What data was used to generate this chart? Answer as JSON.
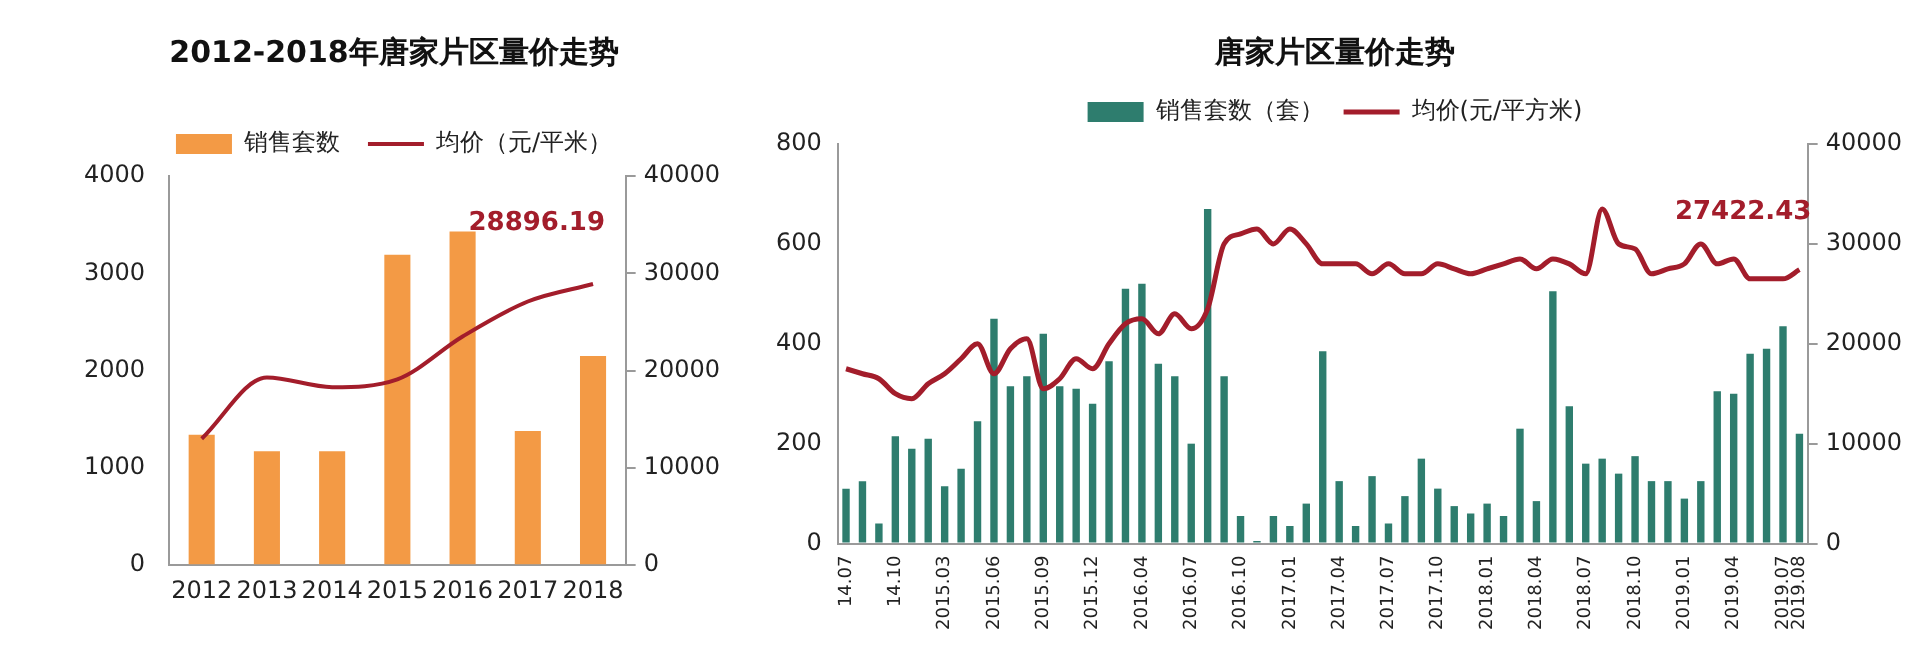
{
  "chart_data": [
    {
      "type": "bar",
      "title": "2012-2018年唐家片区量价走势",
      "legend": "top",
      "categories": [
        "2012",
        "2013",
        "2014",
        "2015",
        "2016",
        "2017",
        "2018"
      ],
      "series": [
        {
          "name": "销售套数",
          "color": "#f39a45",
          "values": [
            1340,
            1170,
            1170,
            3190,
            3430,
            1380,
            2150
          ]
        },
        {
          "name": "均价（元/平米）",
          "type": "line",
          "axis": "y2",
          "color": "#a31d2b",
          "values": [
            13000,
            19300,
            18300,
            19100,
            23500,
            27100,
            28896.19
          ],
          "value_labels": [
            null,
            null,
            null,
            null,
            null,
            null,
            "28896.19"
          ]
        }
      ],
      "ylim": [
        0,
        4000
      ],
      "yticks": [
        0,
        1000,
        2000,
        3000,
        4000
      ],
      "y2lim": [
        0,
        40000
      ],
      "y2ticks": [
        0,
        10000,
        20000,
        30000,
        40000
      ]
    },
    {
      "type": "bar",
      "title": "唐家片区量价走势",
      "legend": "top",
      "categories": [
        "14.07",
        null,
        null,
        "14.10",
        null,
        null,
        "2015.03",
        null,
        null,
        "2015.06",
        null,
        null,
        "2015.09",
        null,
        null,
        "2015.12",
        null,
        null,
        "2016.04",
        null,
        null,
        "2016.07",
        null,
        null,
        "2016.10",
        null,
        null,
        "2017.01",
        null,
        null,
        "2017.04",
        null,
        null,
        "2017.07",
        null,
        null,
        "2017.10",
        null,
        null,
        "2018.01",
        null,
        null,
        "2018.04",
        null,
        null,
        "2018.07",
        null,
        null,
        "2018.10",
        null,
        null,
        "2019.01",
        null,
        null,
        "2019.04",
        null,
        null,
        "2019.07",
        "2019.08"
      ],
      "series": [
        {
          "name": "销售套数（套）",
          "color": "#2e7d6e",
          "values": [
            110,
            125,
            40,
            215,
            190,
            210,
            115,
            150,
            245,
            450,
            315,
            335,
            420,
            315,
            310,
            280,
            365,
            510,
            520,
            360,
            335,
            200,
            670,
            335,
            55,
            5,
            55,
            35,
            80,
            385,
            125,
            35,
            135,
            40,
            95,
            170,
            110,
            75,
            60,
            80,
            55,
            230,
            85,
            505,
            275,
            160,
            170,
            140,
            175,
            125,
            125,
            90,
            125,
            305,
            300,
            380,
            390,
            435,
            220
          ]
        },
        {
          "name": "均价(元/平方米)",
          "type": "line",
          "axis": "y2",
          "color": "#a31d2b",
          "values": [
            17500,
            17000,
            16500,
            15000,
            14500,
            16000,
            17000,
            18500,
            20000,
            17000,
            19500,
            20500,
            15500,
            16500,
            18500,
            17500,
            20000,
            22000,
            22500,
            21000,
            23000,
            21500,
            23500,
            30000,
            31000,
            31500,
            30000,
            31500,
            30000,
            28000,
            28000,
            28000,
            27000,
            28000,
            27000,
            27000,
            28000,
            27500,
            27000,
            27500,
            28000,
            28500,
            27500,
            28500,
            28000,
            27000,
            33500,
            30000,
            29500,
            27000,
            27500,
            28000,
            30000,
            28000,
            28500,
            26500,
            26500,
            26500,
            27422.43
          ],
          "value_labels": [
            null,
            null,
            null,
            null,
            null,
            null,
            null,
            null,
            null,
            null,
            null,
            null,
            null,
            null,
            null,
            null,
            null,
            null,
            null,
            null,
            null,
            null,
            null,
            null,
            null,
            null,
            null,
            null,
            null,
            null,
            null,
            null,
            null,
            null,
            null,
            null,
            null,
            null,
            null,
            null,
            null,
            null,
            null,
            null,
            null,
            null,
            null,
            null,
            null,
            null,
            null,
            null,
            null,
            null,
            null,
            null,
            null,
            null,
            "27422.43"
          ]
        }
      ],
      "ylim": [
        0,
        800
      ],
      "yticks": [
        0,
        200,
        400,
        600,
        800
      ],
      "y2lim": [
        0,
        40000
      ],
      "y2ticks": [
        0,
        10000,
        20000,
        30000,
        40000
      ]
    }
  ]
}
